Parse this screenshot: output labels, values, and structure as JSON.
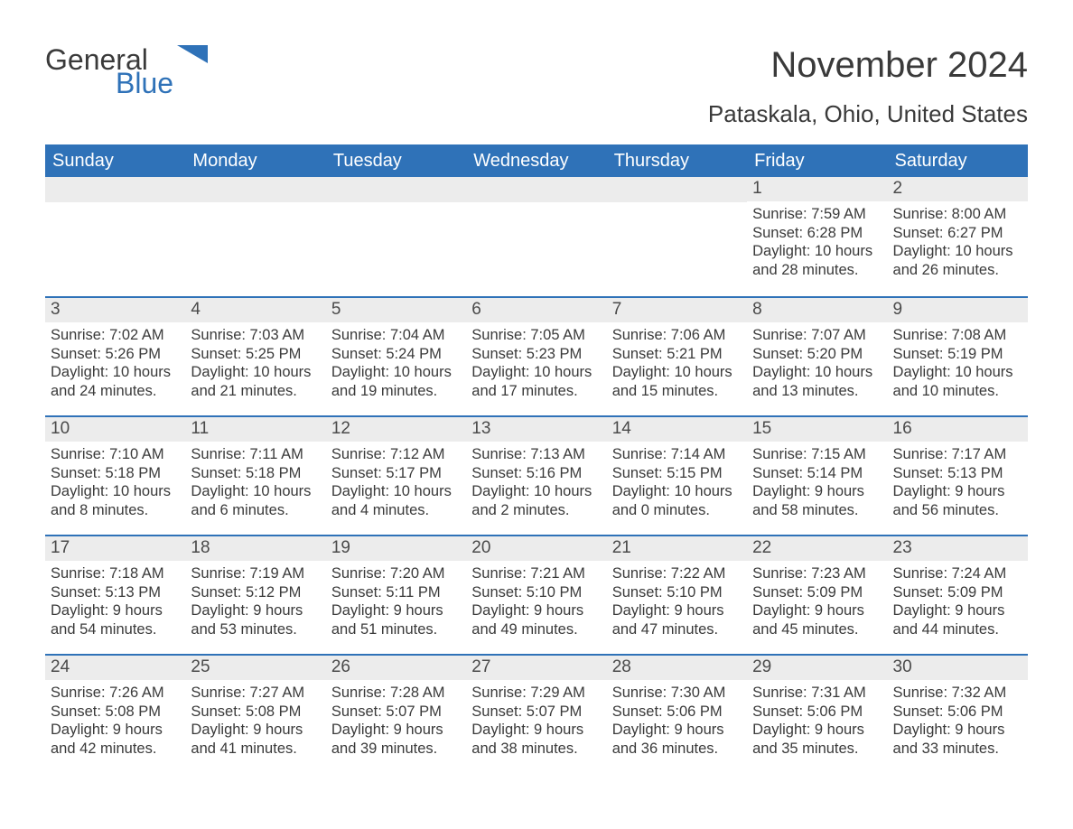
{
  "logo": {
    "general": "General",
    "blue": "Blue"
  },
  "title": "November 2024",
  "location": "Pataskala, Ohio, United States",
  "colors": {
    "header_bg": "#2f72b8",
    "header_text": "#ffffff",
    "day_header_bg": "#ececec",
    "border": "#2f72b8",
    "text": "#3a3a3a",
    "logo_blue": "#2f72b8"
  },
  "weekdays": [
    "Sunday",
    "Monday",
    "Tuesday",
    "Wednesday",
    "Thursday",
    "Friday",
    "Saturday"
  ],
  "weeks": [
    [
      null,
      null,
      null,
      null,
      null,
      {
        "n": "1",
        "sr": "Sunrise: 7:59 AM",
        "ss": "Sunset: 6:28 PM",
        "dl": "Daylight: 10 hours and 28 minutes."
      },
      {
        "n": "2",
        "sr": "Sunrise: 8:00 AM",
        "ss": "Sunset: 6:27 PM",
        "dl": "Daylight: 10 hours and 26 minutes."
      }
    ],
    [
      {
        "n": "3",
        "sr": "Sunrise: 7:02 AM",
        "ss": "Sunset: 5:26 PM",
        "dl": "Daylight: 10 hours and 24 minutes."
      },
      {
        "n": "4",
        "sr": "Sunrise: 7:03 AM",
        "ss": "Sunset: 5:25 PM",
        "dl": "Daylight: 10 hours and 21 minutes."
      },
      {
        "n": "5",
        "sr": "Sunrise: 7:04 AM",
        "ss": "Sunset: 5:24 PM",
        "dl": "Daylight: 10 hours and 19 minutes."
      },
      {
        "n": "6",
        "sr": "Sunrise: 7:05 AM",
        "ss": "Sunset: 5:23 PM",
        "dl": "Daylight: 10 hours and 17 minutes."
      },
      {
        "n": "7",
        "sr": "Sunrise: 7:06 AM",
        "ss": "Sunset: 5:21 PM",
        "dl": "Daylight: 10 hours and 15 minutes."
      },
      {
        "n": "8",
        "sr": "Sunrise: 7:07 AM",
        "ss": "Sunset: 5:20 PM",
        "dl": "Daylight: 10 hours and 13 minutes."
      },
      {
        "n": "9",
        "sr": "Sunrise: 7:08 AM",
        "ss": "Sunset: 5:19 PM",
        "dl": "Daylight: 10 hours and 10 minutes."
      }
    ],
    [
      {
        "n": "10",
        "sr": "Sunrise: 7:10 AM",
        "ss": "Sunset: 5:18 PM",
        "dl": "Daylight: 10 hours and 8 minutes."
      },
      {
        "n": "11",
        "sr": "Sunrise: 7:11 AM",
        "ss": "Sunset: 5:18 PM",
        "dl": "Daylight: 10 hours and 6 minutes."
      },
      {
        "n": "12",
        "sr": "Sunrise: 7:12 AM",
        "ss": "Sunset: 5:17 PM",
        "dl": "Daylight: 10 hours and 4 minutes."
      },
      {
        "n": "13",
        "sr": "Sunrise: 7:13 AM",
        "ss": "Sunset: 5:16 PM",
        "dl": "Daylight: 10 hours and 2 minutes."
      },
      {
        "n": "14",
        "sr": "Sunrise: 7:14 AM",
        "ss": "Sunset: 5:15 PM",
        "dl": "Daylight: 10 hours and 0 minutes."
      },
      {
        "n": "15",
        "sr": "Sunrise: 7:15 AM",
        "ss": "Sunset: 5:14 PM",
        "dl": "Daylight: 9 hours and 58 minutes."
      },
      {
        "n": "16",
        "sr": "Sunrise: 7:17 AM",
        "ss": "Sunset: 5:13 PM",
        "dl": "Daylight: 9 hours and 56 minutes."
      }
    ],
    [
      {
        "n": "17",
        "sr": "Sunrise: 7:18 AM",
        "ss": "Sunset: 5:13 PM",
        "dl": "Daylight: 9 hours and 54 minutes."
      },
      {
        "n": "18",
        "sr": "Sunrise: 7:19 AM",
        "ss": "Sunset: 5:12 PM",
        "dl": "Daylight: 9 hours and 53 minutes."
      },
      {
        "n": "19",
        "sr": "Sunrise: 7:20 AM",
        "ss": "Sunset: 5:11 PM",
        "dl": "Daylight: 9 hours and 51 minutes."
      },
      {
        "n": "20",
        "sr": "Sunrise: 7:21 AM",
        "ss": "Sunset: 5:10 PM",
        "dl": "Daylight: 9 hours and 49 minutes."
      },
      {
        "n": "21",
        "sr": "Sunrise: 7:22 AM",
        "ss": "Sunset: 5:10 PM",
        "dl": "Daylight: 9 hours and 47 minutes."
      },
      {
        "n": "22",
        "sr": "Sunrise: 7:23 AM",
        "ss": "Sunset: 5:09 PM",
        "dl": "Daylight: 9 hours and 45 minutes."
      },
      {
        "n": "23",
        "sr": "Sunrise: 7:24 AM",
        "ss": "Sunset: 5:09 PM",
        "dl": "Daylight: 9 hours and 44 minutes."
      }
    ],
    [
      {
        "n": "24",
        "sr": "Sunrise: 7:26 AM",
        "ss": "Sunset: 5:08 PM",
        "dl": "Daylight: 9 hours and 42 minutes."
      },
      {
        "n": "25",
        "sr": "Sunrise: 7:27 AM",
        "ss": "Sunset: 5:08 PM",
        "dl": "Daylight: 9 hours and 41 minutes."
      },
      {
        "n": "26",
        "sr": "Sunrise: 7:28 AM",
        "ss": "Sunset: 5:07 PM",
        "dl": "Daylight: 9 hours and 39 minutes."
      },
      {
        "n": "27",
        "sr": "Sunrise: 7:29 AM",
        "ss": "Sunset: 5:07 PM",
        "dl": "Daylight: 9 hours and 38 minutes."
      },
      {
        "n": "28",
        "sr": "Sunrise: 7:30 AM",
        "ss": "Sunset: 5:06 PM",
        "dl": "Daylight: 9 hours and 36 minutes."
      },
      {
        "n": "29",
        "sr": "Sunrise: 7:31 AM",
        "ss": "Sunset: 5:06 PM",
        "dl": "Daylight: 9 hours and 35 minutes."
      },
      {
        "n": "30",
        "sr": "Sunrise: 7:32 AM",
        "ss": "Sunset: 5:06 PM",
        "dl": "Daylight: 9 hours and 33 minutes."
      }
    ]
  ]
}
